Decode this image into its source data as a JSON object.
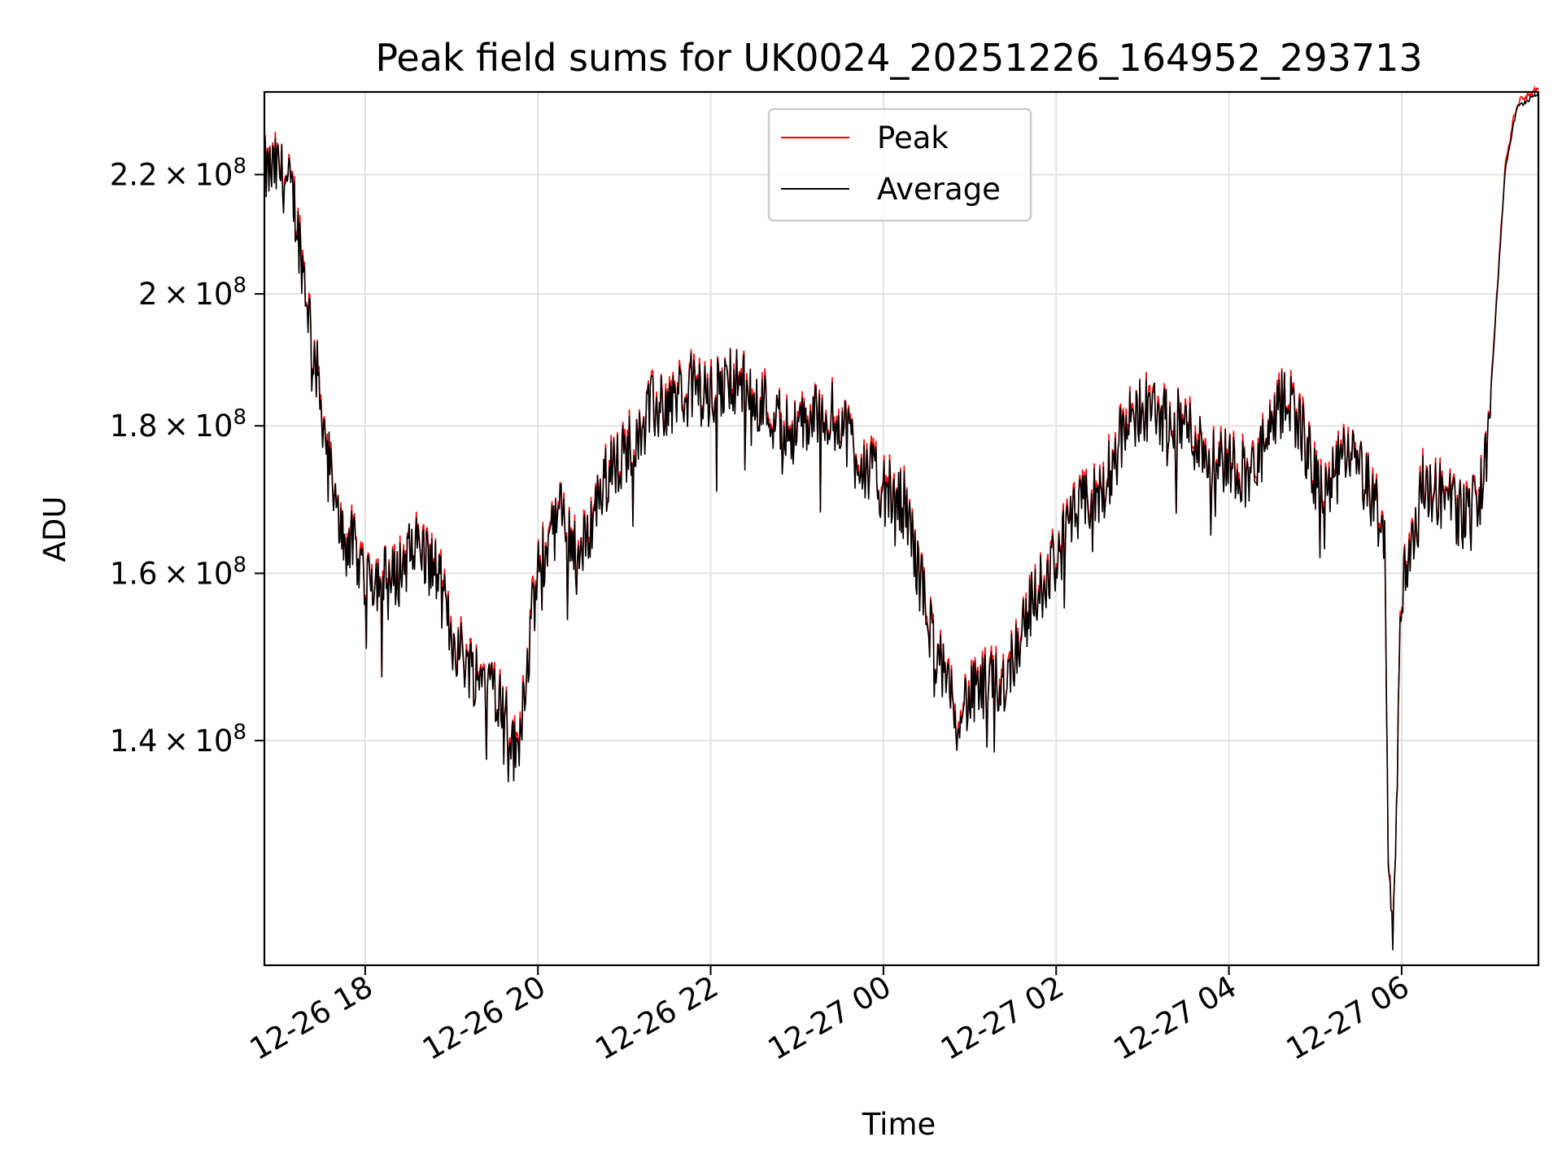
{
  "chart_data": {
    "type": "line",
    "title": "Peak field sums for UK0024_20251226_164952_293713",
    "xlabel": "Time",
    "ylabel": "ADU",
    "x_axis": "time",
    "x_ticks": [
      "12-26 18",
      "12-26 20",
      "12-26 22",
      "12-27 00",
      "12-27 02",
      "12-27 04",
      "12-27 06"
    ],
    "x_tick_values": [
      "2025-12-26 18:00",
      "2025-12-26 20:00",
      "2025-12-26 22:00",
      "2025-12-27 00:00",
      "2025-12-27 02:00",
      "2025-12-27 04:00",
      "2025-12-27 06:00"
    ],
    "xlim": [
      "2025-12-26 16:50",
      "2025-12-27 07:35"
    ],
    "y_scale": "log",
    "ylim": [
      117000000,
      235000000
    ],
    "y_ticks": [
      {
        "base": "1.4",
        "exp": "8",
        "value": 140000000
      },
      {
        "base": "1.6",
        "exp": "8",
        "value": 160000000
      },
      {
        "base": "1.8",
        "exp": "8",
        "value": 180000000
      },
      {
        "base": "2",
        "exp": "8",
        "value": 200000000
      },
      {
        "base": "2.2",
        "exp": "8",
        "value": 220000000
      }
    ],
    "grid": true,
    "legend_position": "top-center",
    "series": [
      {
        "name": "Peak",
        "color": "#ff0000",
        "role": "peak"
      },
      {
        "name": "Average",
        "color": "#000000",
        "role": "average"
      }
    ],
    "average_keypoints": {
      "t": [
        "2025-12-26 16:50",
        "2025-12-26 17:00",
        "2025-12-26 17:10",
        "2025-12-26 17:25",
        "2025-12-26 17:40",
        "2025-12-26 17:50",
        "2025-12-26 18:00",
        "2025-12-26 18:20",
        "2025-12-26 18:35",
        "2025-12-26 18:50",
        "2025-12-26 19:00",
        "2025-12-26 19:15",
        "2025-12-26 19:30",
        "2025-12-26 19:45",
        "2025-12-26 20:00",
        "2025-12-26 20:15",
        "2025-12-26 20:30",
        "2025-12-26 20:45",
        "2025-12-26 21:00",
        "2025-12-26 21:15",
        "2025-12-26 21:30",
        "2025-12-26 21:45",
        "2025-12-26 22:00",
        "2025-12-26 22:15",
        "2025-12-26 22:30",
        "2025-12-26 22:45",
        "2025-12-26 23:00",
        "2025-12-26 23:15",
        "2025-12-26 23:30",
        "2025-12-26 23:45",
        "2025-12-27 00:00",
        "2025-12-27 00:15",
        "2025-12-27 00:30",
        "2025-12-27 00:45",
        "2025-12-27 00:55",
        "2025-12-27 01:10",
        "2025-12-27 01:25",
        "2025-12-27 01:40",
        "2025-12-27 02:00",
        "2025-12-27 02:15",
        "2025-12-27 02:30",
        "2025-12-27 02:45",
        "2025-12-27 03:00",
        "2025-12-27 03:15",
        "2025-12-27 03:30",
        "2025-12-27 03:45",
        "2025-12-27 04:00",
        "2025-12-27 04:15",
        "2025-12-27 04:30",
        "2025-12-27 04:40",
        "2025-12-27 04:50",
        "2025-12-27 05:00",
        "2025-12-27 05:10",
        "2025-12-27 05:20",
        "2025-12-27 05:30",
        "2025-12-27 05:40",
        "2025-12-27 05:48",
        "2025-12-27 05:51",
        "2025-12-27 05:54",
        "2025-12-27 06:00",
        "2025-12-27 06:15",
        "2025-12-27 06:30",
        "2025-12-27 06:45",
        "2025-12-27 06:58",
        "2025-12-27 07:05",
        "2025-12-27 07:12",
        "2025-12-27 07:20",
        "2025-12-27 07:35"
      ],
      "v": [
        220000000,
        221000000,
        216000000,
        190000000,
        167000000,
        164000000,
        160000000,
        159000000,
        164000000,
        160000000,
        152000000,
        148000000,
        147000000,
        138000000,
        160000000,
        168000000,
        162000000,
        172000000,
        176000000,
        182000000,
        183000000,
        186000000,
        184000000,
        187000000,
        185000000,
        181000000,
        179000000,
        182000000,
        181000000,
        175000000,
        171000000,
        169000000,
        155000000,
        145000000,
        144000000,
        146000000,
        147000000,
        155000000,
        162000000,
        168000000,
        170000000,
        178000000,
        183000000,
        181000000,
        180000000,
        176000000,
        175000000,
        173000000,
        179000000,
        185000000,
        180000000,
        172000000,
        171000000,
        176000000,
        174000000,
        170000000,
        165000000,
        126000000,
        118000000,
        158000000,
        172000000,
        170000000,
        167000000,
        173000000,
        195000000,
        221000000,
        232000000,
        235000000
      ]
    },
    "notes": ""
  }
}
